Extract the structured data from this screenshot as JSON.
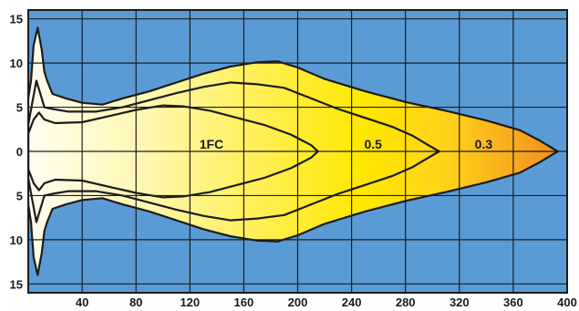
{
  "chart_data": {
    "type": "area",
    "title": "",
    "xlabel": "",
    "ylabel": "",
    "xlim": [
      0,
      400
    ],
    "ylim": [
      -16,
      16
    ],
    "x_ticks": [
      40,
      80,
      120,
      160,
      200,
      240,
      280,
      320,
      360,
      400
    ],
    "y_ticks": [
      {
        "value": 15,
        "label": "15"
      },
      {
        "value": 10,
        "label": "10"
      },
      {
        "value": 5,
        "label": "5"
      },
      {
        "value": 0,
        "label": "0"
      },
      {
        "value": -5,
        "label": "5"
      },
      {
        "value": -10,
        "label": "10"
      },
      {
        "value": -15,
        "label": "15"
      }
    ],
    "grid": true,
    "colors": {
      "background": "#5b9bd5",
      "grid": "#1c1c1c",
      "outline": "#1c1c1c",
      "gradient": [
        "#fffdf0",
        "#fff7b0",
        "#ffe800",
        "#ffd21a",
        "#f7a21e",
        "#f08a1a"
      ]
    },
    "series": [
      {
        "label": "0.3",
        "label_x": 338,
        "label_y": 0,
        "upper": [
          [
            0,
            6
          ],
          [
            2,
            8
          ],
          [
            4,
            12
          ],
          [
            7,
            14
          ],
          [
            10,
            11.5
          ],
          [
            12,
            9
          ],
          [
            14,
            8
          ],
          [
            18,
            6.5
          ],
          [
            28,
            6
          ],
          [
            40,
            5.5
          ],
          [
            55,
            5.3
          ],
          [
            70,
            6
          ],
          [
            90,
            6.8
          ],
          [
            110,
            7.8
          ],
          [
            130,
            8.8
          ],
          [
            150,
            9.6
          ],
          [
            170,
            10.1
          ],
          [
            185,
            10.2
          ],
          [
            200,
            9.5
          ],
          [
            220,
            8.2
          ],
          [
            250,
            6.8
          ],
          [
            280,
            5.6
          ],
          [
            310,
            4.6
          ],
          [
            340,
            3.5
          ],
          [
            365,
            2.4
          ],
          [
            380,
            1.2
          ],
          [
            393,
            0
          ]
        ],
        "lower": [
          [
            0,
            -6
          ],
          [
            2,
            -8
          ],
          [
            4,
            -12
          ],
          [
            7,
            -14
          ],
          [
            10,
            -11.5
          ],
          [
            12,
            -9
          ],
          [
            14,
            -8
          ],
          [
            18,
            -6.5
          ],
          [
            28,
            -6
          ],
          [
            40,
            -5.5
          ],
          [
            55,
            -5.3
          ],
          [
            70,
            -6
          ],
          [
            90,
            -6.8
          ],
          [
            110,
            -7.8
          ],
          [
            130,
            -8.8
          ],
          [
            150,
            -9.6
          ],
          [
            170,
            -10.1
          ],
          [
            185,
            -10.2
          ],
          [
            200,
            -9.5
          ],
          [
            220,
            -8.2
          ],
          [
            250,
            -6.8
          ],
          [
            280,
            -5.6
          ],
          [
            310,
            -4.6
          ],
          [
            340,
            -3.5
          ],
          [
            365,
            -2.4
          ],
          [
            380,
            -1.2
          ],
          [
            393,
            0
          ]
        ]
      },
      {
        "label": "0.5",
        "label_x": 256,
        "label_y": 0,
        "upper": [
          [
            0,
            3
          ],
          [
            3,
            5.5
          ],
          [
            6,
            8
          ],
          [
            9,
            6.5
          ],
          [
            12,
            5
          ],
          [
            18,
            4.8
          ],
          [
            30,
            4.5
          ],
          [
            50,
            4.5
          ],
          [
            70,
            5
          ],
          [
            90,
            5.8
          ],
          [
            110,
            6.6
          ],
          [
            130,
            7.3
          ],
          [
            150,
            7.8
          ],
          [
            170,
            7.6
          ],
          [
            190,
            7.2
          ],
          [
            210,
            6
          ],
          [
            230,
            4.8
          ],
          [
            250,
            3.8
          ],
          [
            270,
            2.8
          ],
          [
            285,
            1.8
          ],
          [
            296,
            0.8
          ],
          [
            305,
            0
          ]
        ],
        "lower": [
          [
            0,
            -3
          ],
          [
            3,
            -5.5
          ],
          [
            6,
            -8
          ],
          [
            9,
            -6.5
          ],
          [
            12,
            -5
          ],
          [
            18,
            -4.8
          ],
          [
            30,
            -4.5
          ],
          [
            50,
            -4.5
          ],
          [
            70,
            -5
          ],
          [
            90,
            -5.8
          ],
          [
            110,
            -6.6
          ],
          [
            130,
            -7.3
          ],
          [
            150,
            -7.8
          ],
          [
            170,
            -7.6
          ],
          [
            190,
            -7.2
          ],
          [
            210,
            -6
          ],
          [
            230,
            -4.8
          ],
          [
            250,
            -3.8
          ],
          [
            270,
            -2.8
          ],
          [
            285,
            -1.8
          ],
          [
            296,
            -0.8
          ],
          [
            305,
            0
          ]
        ]
      },
      {
        "label": "1FC",
        "label_x": 136,
        "label_y": 0,
        "upper": [
          [
            0,
            2
          ],
          [
            4,
            3.6
          ],
          [
            8,
            4.4
          ],
          [
            12,
            3.6
          ],
          [
            20,
            3.2
          ],
          [
            40,
            3.3
          ],
          [
            60,
            4
          ],
          [
            80,
            4.7
          ],
          [
            100,
            5.2
          ],
          [
            115,
            5.1
          ],
          [
            135,
            4.6
          ],
          [
            155,
            3.8
          ],
          [
            175,
            3
          ],
          [
            195,
            1.9
          ],
          [
            210,
            0.7
          ],
          [
            215,
            0
          ]
        ],
        "lower": [
          [
            0,
            -2
          ],
          [
            4,
            -3.6
          ],
          [
            8,
            -4.4
          ],
          [
            12,
            -3.6
          ],
          [
            20,
            -3.2
          ],
          [
            40,
            -3.3
          ],
          [
            60,
            -4
          ],
          [
            80,
            -4.7
          ],
          [
            100,
            -5.2
          ],
          [
            115,
            -5.1
          ],
          [
            135,
            -4.6
          ],
          [
            155,
            -3.8
          ],
          [
            175,
            -3
          ],
          [
            195,
            -1.9
          ],
          [
            210,
            -0.7
          ],
          [
            215,
            0
          ]
        ]
      }
    ]
  }
}
